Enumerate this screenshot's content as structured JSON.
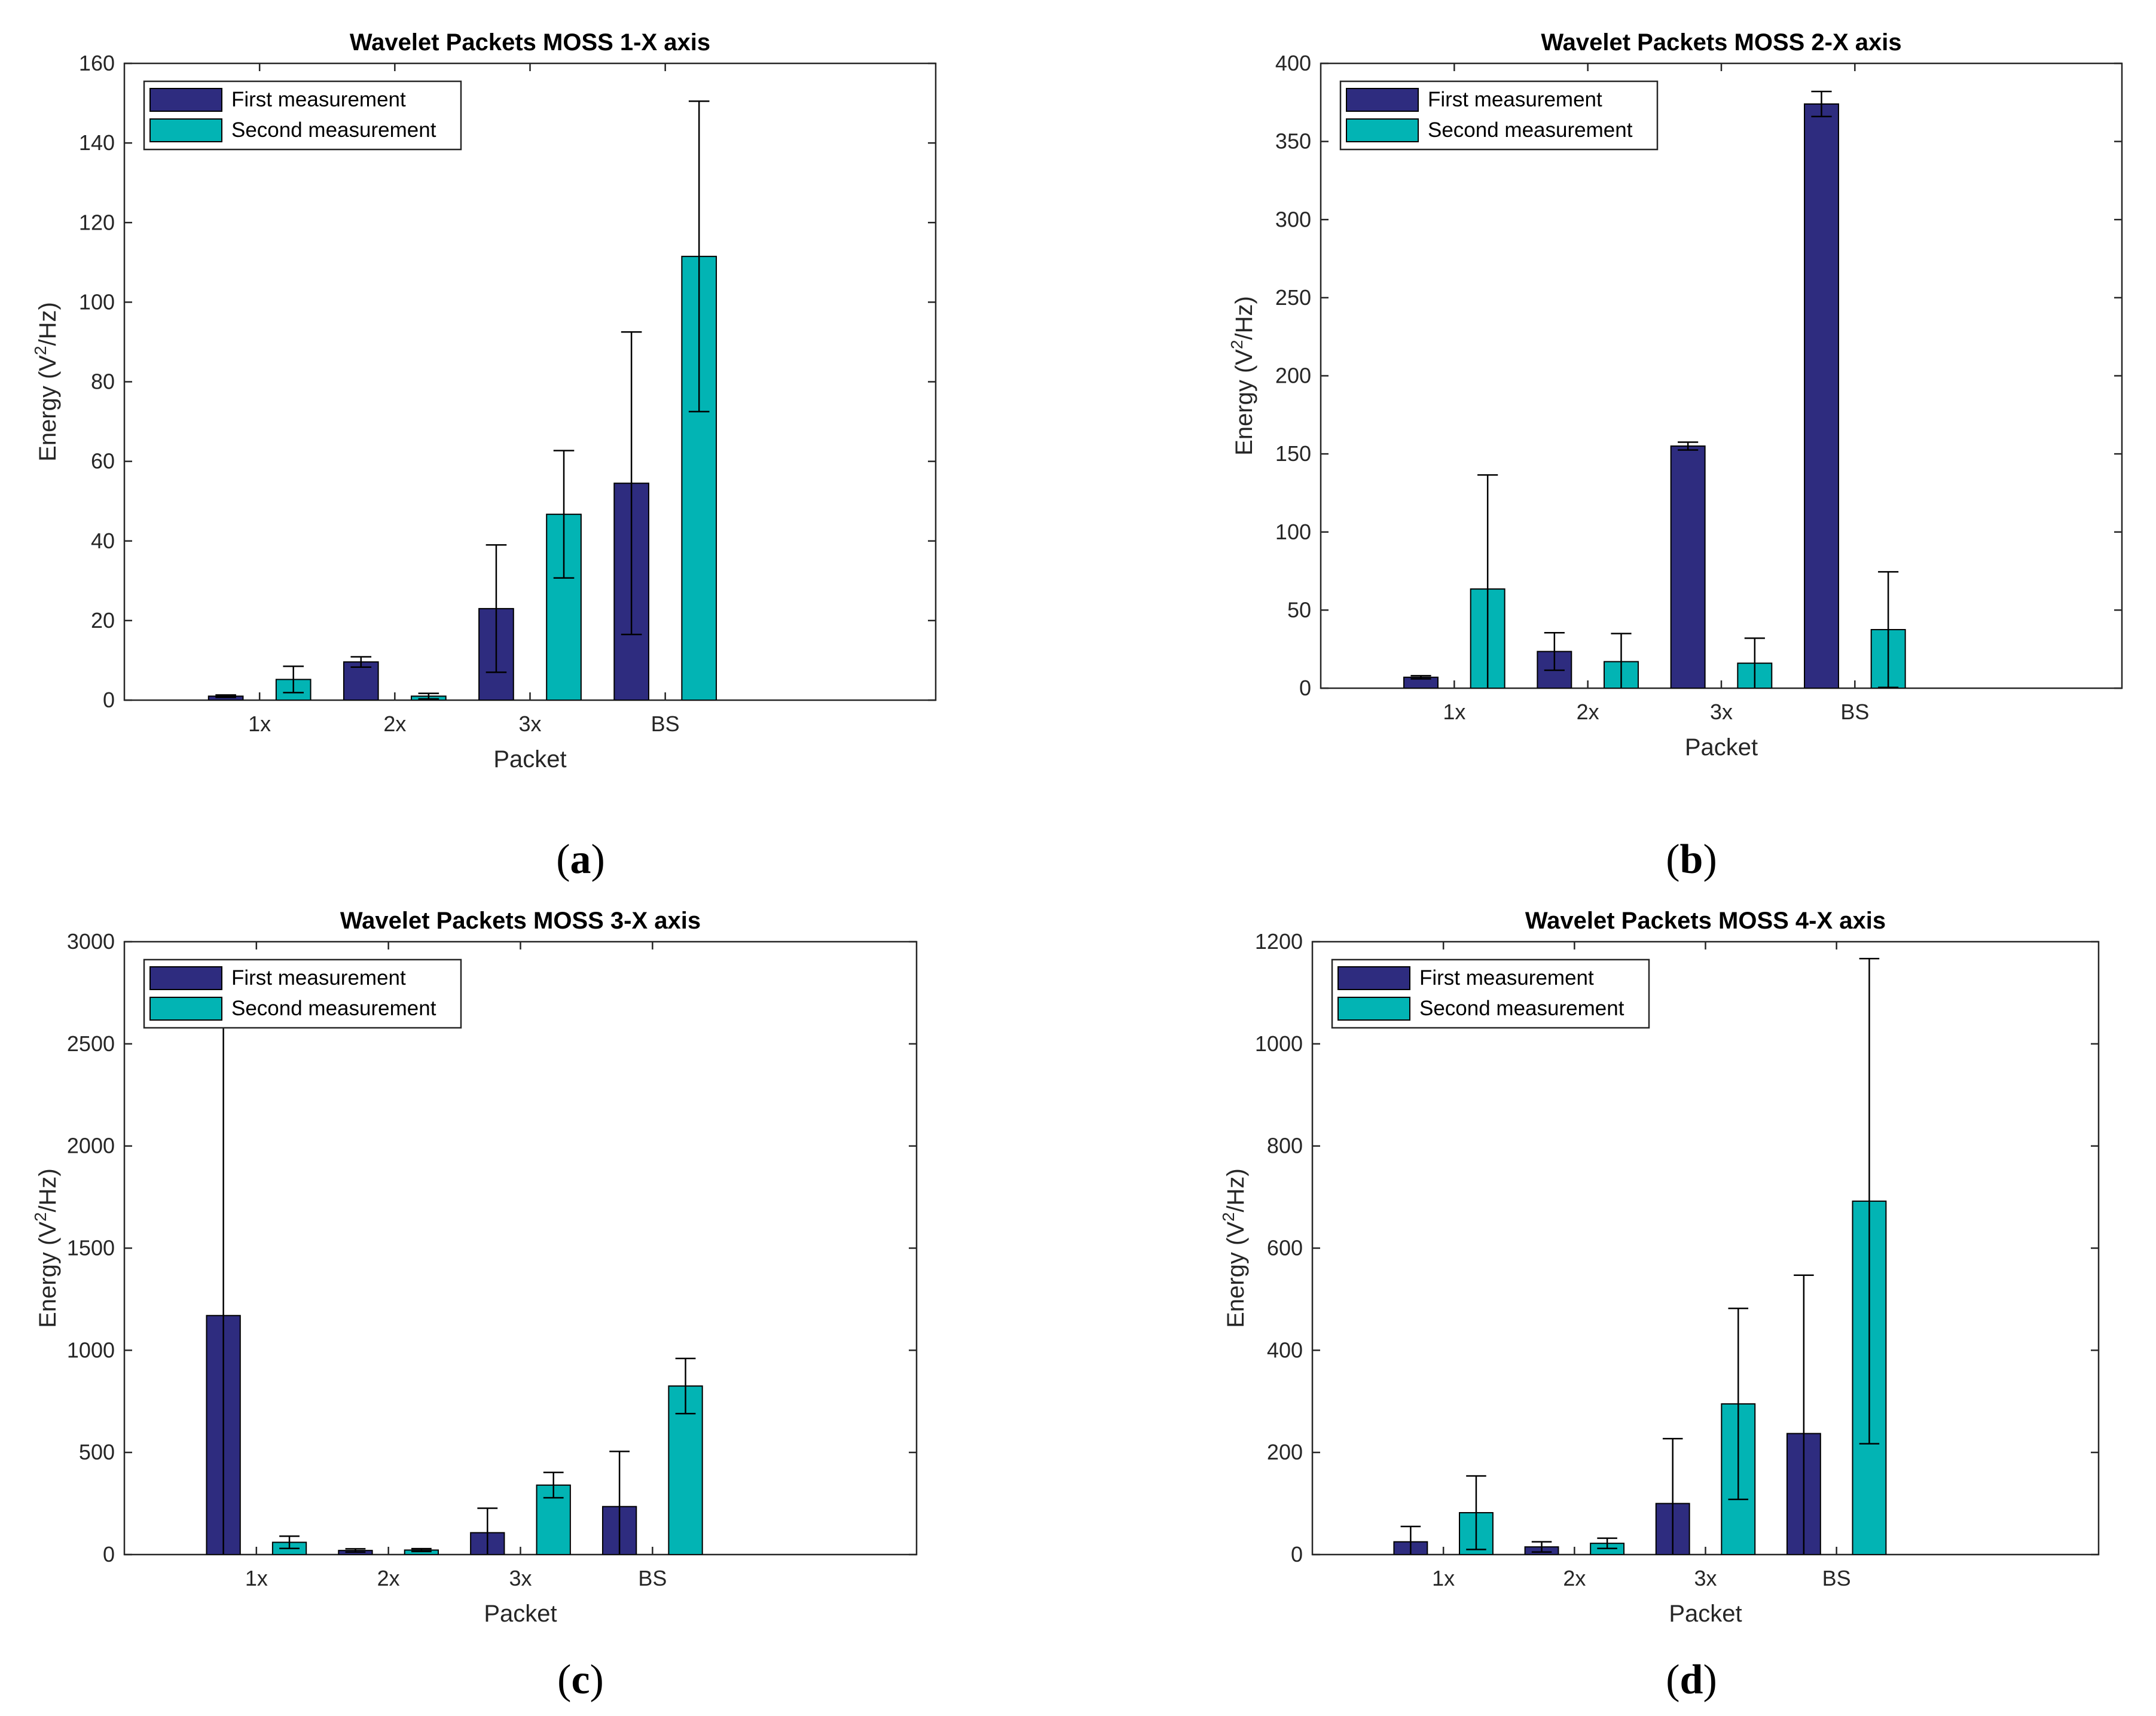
{
  "chart_data": [
    {
      "type": "bar",
      "panel_id": "a",
      "caption_letter": "a",
      "title": "Wavelet Packets MOSS 1-X axis",
      "xlabel": "Packet",
      "ylabel": {
        "base": "Energy (V",
        "sup": "2",
        "tail": "/Hz)"
      },
      "ylim": [
        0,
        160
      ],
      "yticks": [
        "0",
        "20",
        "40",
        "60",
        "80",
        "100",
        "120",
        "140",
        "160"
      ],
      "categories": [
        "1x",
        "2x",
        "3x",
        "BS"
      ],
      "legend_position": "top-left",
      "series": [
        {
          "name": "First measurement",
          "color": "#2E2C7F",
          "values": [
            1,
            9.6,
            23,
            54.5
          ],
          "errors": [
            0.3,
            1.3,
            16,
            38
          ]
        },
        {
          "name": "Second measurement",
          "color": "#02B4B4",
          "values": [
            5.2,
            1,
            46.7,
            111.5
          ],
          "errors": [
            3.3,
            0.7,
            16,
            39
          ]
        }
      ]
    },
    {
      "type": "bar",
      "panel_id": "b",
      "caption_letter": "b",
      "title": "Wavelet Packets MOSS 2-X axis",
      "xlabel": "Packet",
      "ylabel": {
        "base": "Energy (V",
        "sup": "2",
        "tail": "/Hz)"
      },
      "ylim": [
        0,
        400
      ],
      "yticks": [
        "0",
        "50",
        "100",
        "150",
        "200",
        "250",
        "300",
        "350",
        "400"
      ],
      "categories": [
        "1x",
        "2x",
        "3x",
        "BS"
      ],
      "legend_position": "top-left",
      "series": [
        {
          "name": "First measurement",
          "color": "#2E2C7F",
          "values": [
            7,
            23.5,
            155,
            374
          ],
          "errors": [
            1,
            12,
            2.5,
            8
          ]
        },
        {
          "name": "Second measurement",
          "color": "#02B4B4",
          "values": [
            63.5,
            17,
            16,
            37.5
          ],
          "errors": [
            73,
            18,
            16,
            37
          ]
        }
      ]
    },
    {
      "type": "bar",
      "panel_id": "c",
      "caption_letter": "c",
      "title": "Wavelet Packets MOSS 3-X axis",
      "xlabel": "Packet",
      "ylabel": {
        "base": "Energy (V",
        "sup": "2",
        "tail": "/Hz)"
      },
      "ylim": [
        0,
        3000
      ],
      "yticks": [
        "0",
        "500",
        "1000",
        "1500",
        "2000",
        "2500",
        "3000"
      ],
      "categories": [
        "1x",
        "2x",
        "3x",
        "BS"
      ],
      "legend_position": "top-left",
      "series": [
        {
          "name": "First measurement",
          "color": "#2E2C7F",
          "values": [
            1170,
            20,
            107,
            235
          ],
          "errors": [
            1700,
            8,
            120,
            270
          ]
        },
        {
          "name": "Second measurement",
          "color": "#02B4B4",
          "values": [
            60,
            22,
            340,
            825
          ],
          "errors": [
            30,
            7,
            62,
            135
          ]
        }
      ]
    },
    {
      "type": "bar",
      "panel_id": "d",
      "caption_letter": "d",
      "title": "Wavelet Packets MOSS 4-X axis",
      "xlabel": "Packet",
      "ylabel": {
        "base": "Energy (V",
        "sup": "2",
        "tail": "/Hz)"
      },
      "ylim": [
        0,
        1200
      ],
      "yticks": [
        "0",
        "200",
        "400",
        "600",
        "800",
        "1000",
        "1200"
      ],
      "categories": [
        "1x",
        "2x",
        "3x",
        "BS"
      ],
      "legend_position": "top-left",
      "series": [
        {
          "name": "First measurement",
          "color": "#2E2C7F",
          "values": [
            25,
            15,
            100,
            237
          ],
          "errors": [
            30,
            10,
            127,
            310
          ]
        },
        {
          "name": "Second measurement",
          "color": "#02B4B4",
          "values": [
            82,
            22,
            295,
            692
          ],
          "errors": [
            72,
            10,
            187,
            475
          ]
        }
      ]
    }
  ]
}
